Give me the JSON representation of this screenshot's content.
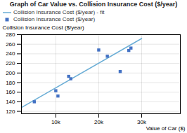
{
  "chart_data": {
    "type": "scatter",
    "title": "Graph of Car Value vs. Collision Insurance Cost ($/year)",
    "xlabel": "Value of Car ($)",
    "ylabel": "Collision Insurance Cost ($/year)",
    "series": [
      {
        "name": "Collision Insurance Cost ($/year) - fit",
        "type": "line",
        "color": "#6baed6",
        "x": [
          2000,
          30000
        ],
        "values": [
          128,
          272
        ]
      },
      {
        "name": "Collision Insurance Cost ($/year)",
        "type": "scatter",
        "color": "#4472c4",
        "marker": "square",
        "x": [
          5000,
          10000,
          10500,
          13000,
          13500,
          20000,
          22000,
          25000,
          27000,
          27500
        ],
        "values": [
          140,
          163,
          152,
          193,
          188,
          248,
          235,
          203,
          247,
          252
        ]
      }
    ],
    "xlim": [
      2000,
      39000
    ],
    "xticks": [
      {
        "value": 10000,
        "label": "10k"
      },
      {
        "value": 20000,
        "label": "20k"
      },
      {
        "value": 30000,
        "label": "30k"
      }
    ],
    "ylim": [
      115,
      280
    ],
    "yticks": [
      120,
      140,
      160,
      180,
      200,
      220,
      240,
      260,
      280
    ],
    "grid": true,
    "legend": "top"
  }
}
